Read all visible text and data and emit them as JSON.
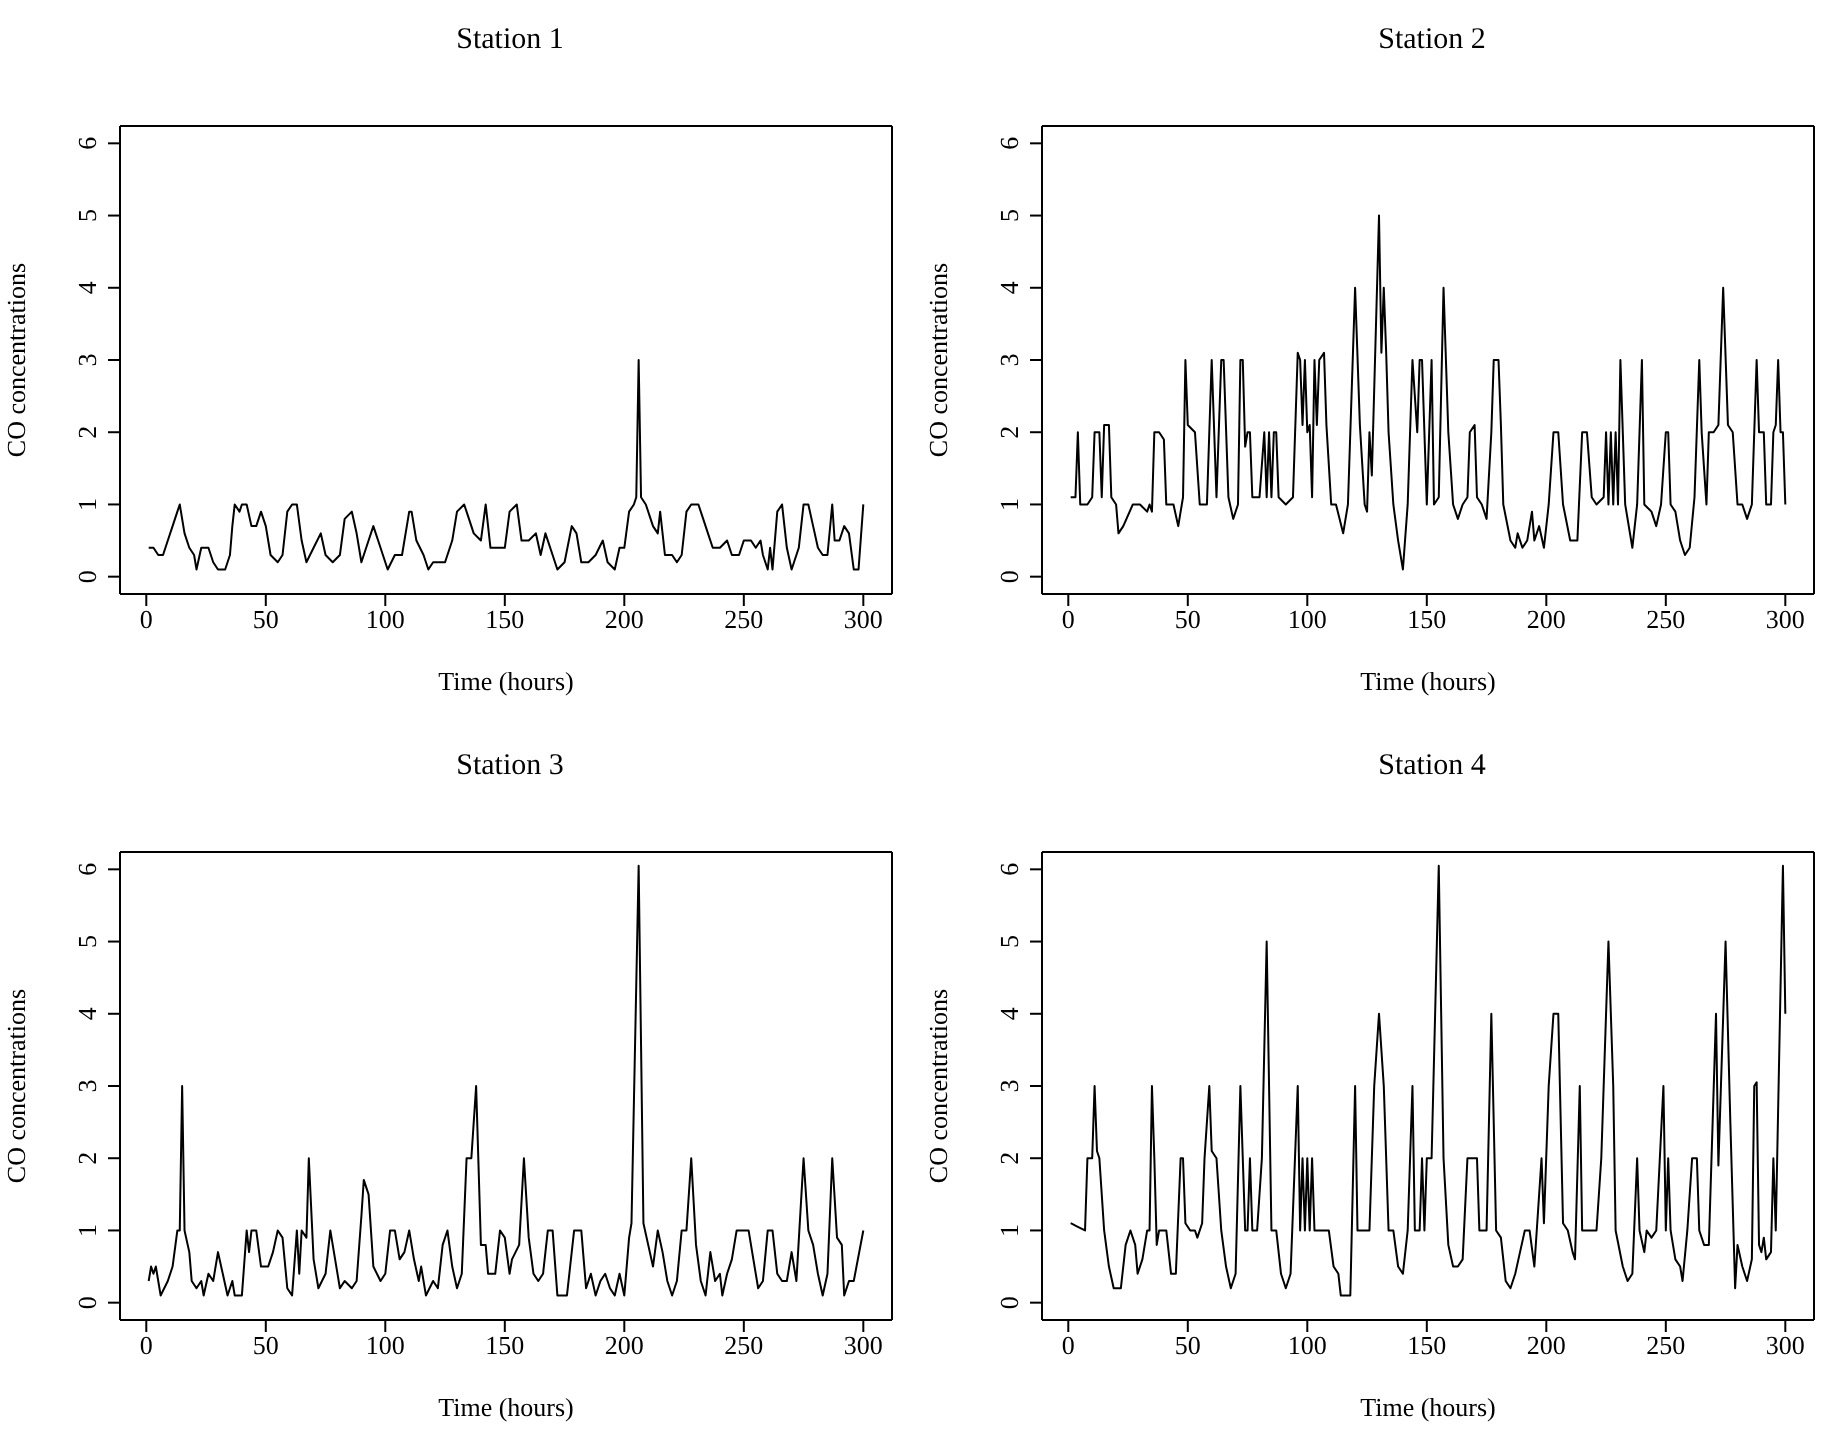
{
  "chart_data": [
    {
      "type": "line",
      "title": "Station 1",
      "xlabel": "Time (hours)",
      "ylabel": "CO concentrations",
      "color": "#000000",
      "xlim": [
        -11,
        312
      ],
      "ylim": [
        -0.24,
        6.24
      ],
      "xticks": [
        0,
        50,
        100,
        150,
        200,
        250,
        300
      ],
      "yticks": [
        0,
        1,
        2,
        3,
        4,
        5,
        6
      ],
      "x": [
        1,
        3,
        5,
        7,
        9,
        11,
        13,
        14,
        16,
        18,
        20,
        21,
        23,
        26,
        28,
        30,
        33,
        35,
        36,
        37,
        39,
        40,
        42,
        44,
        46,
        48,
        50,
        52,
        55,
        57,
        59,
        61,
        63,
        65,
        67,
        70,
        73,
        75,
        78,
        81,
        83,
        86,
        88,
        90,
        93,
        95,
        98,
        101,
        104,
        107,
        110,
        111,
        113,
        116,
        118,
        120,
        125,
        128,
        130,
        133,
        135,
        137,
        140,
        142,
        144,
        147,
        150,
        152,
        155,
        157,
        160,
        163,
        165,
        167,
        170,
        172,
        175,
        178,
        180,
        182,
        185,
        188,
        191,
        193,
        196,
        198,
        200,
        202,
        204,
        205,
        206,
        207,
        209,
        212,
        214,
        215,
        217,
        220,
        222,
        224,
        226,
        228,
        231,
        233,
        235,
        237,
        240,
        243,
        245,
        248,
        250,
        253,
        255,
        257,
        258,
        260,
        261,
        262,
        264,
        266,
        268,
        270,
        273,
        275,
        277,
        279,
        281,
        283,
        285,
        287,
        288,
        290,
        292,
        294,
        296,
        298,
        300
      ],
      "values": [
        0.4,
        0.4,
        0.3,
        0.3,
        0.5,
        0.7,
        0.9,
        1.0,
        0.6,
        0.4,
        0.3,
        0.1,
        0.4,
        0.4,
        0.2,
        0.1,
        0.1,
        0.3,
        0.7,
        1.0,
        0.9,
        1.0,
        1.0,
        0.7,
        0.7,
        0.9,
        0.7,
        0.3,
        0.2,
        0.3,
        0.9,
        1.0,
        1.0,
        0.5,
        0.2,
        0.4,
        0.6,
        0.3,
        0.2,
        0.3,
        0.8,
        0.9,
        0.6,
        0.2,
        0.5,
        0.7,
        0.4,
        0.1,
        0.3,
        0.3,
        0.9,
        0.9,
        0.5,
        0.3,
        0.1,
        0.2,
        0.2,
        0.5,
        0.9,
        1.0,
        0.8,
        0.6,
        0.5,
        1.0,
        0.4,
        0.4,
        0.4,
        0.9,
        1.0,
        0.5,
        0.5,
        0.6,
        0.3,
        0.6,
        0.3,
        0.1,
        0.2,
        0.7,
        0.6,
        0.2,
        0.2,
        0.3,
        0.5,
        0.2,
        0.1,
        0.4,
        0.4,
        0.9,
        1.0,
        1.1,
        3.0,
        1.1,
        1.0,
        0.7,
        0.6,
        0.9,
        0.3,
        0.3,
        0.2,
        0.3,
        0.9,
        1.0,
        1.0,
        0.8,
        0.6,
        0.4,
        0.4,
        0.5,
        0.3,
        0.3,
        0.5,
        0.5,
        0.4,
        0.5,
        0.3,
        0.1,
        0.4,
        0.1,
        0.9,
        1.0,
        0.4,
        0.1,
        0.4,
        1.0,
        1.0,
        0.7,
        0.4,
        0.3,
        0.3,
        1.0,
        0.5,
        0.5,
        0.7,
        0.6,
        0.1,
        0.1,
        1.0
      ]
    },
    {
      "type": "line",
      "title": "Station 2",
      "xlabel": "Time (hours)",
      "ylabel": "CO concentrations",
      "color": "#000000",
      "xlim": [
        -11,
        312
      ],
      "ylim": [
        -0.24,
        6.24
      ],
      "xticks": [
        0,
        50,
        100,
        150,
        200,
        250,
        300
      ],
      "yticks": [
        0,
        1,
        2,
        3,
        4,
        5,
        6
      ],
      "x": [
        1,
        3,
        4,
        5,
        8,
        10,
        11,
        13,
        14,
        15,
        17,
        18,
        20,
        21,
        23,
        27,
        30,
        33,
        34,
        35,
        36,
        38,
        40,
        41,
        44,
        46,
        47,
        48,
        49,
        50,
        53,
        55,
        58,
        60,
        62,
        64,
        65,
        67,
        69,
        71,
        72,
        73,
        74,
        75,
        76,
        77,
        80,
        82,
        83,
        84,
        85,
        86,
        87,
        88,
        91,
        94,
        96,
        97,
        98,
        99,
        100,
        101,
        102,
        103,
        104,
        105,
        107,
        108,
        110,
        112,
        115,
        117,
        120,
        122,
        124,
        125,
        126,
        127,
        130,
        131,
        132,
        133,
        134,
        136,
        138,
        140,
        142,
        143,
        144,
        146,
        147,
        148,
        150,
        152,
        153,
        155,
        157,
        159,
        161,
        163,
        165,
        167,
        168,
        170,
        171,
        173,
        175,
        177,
        178,
        180,
        181,
        182,
        185,
        187,
        188,
        190,
        192,
        194,
        195,
        197,
        199,
        201,
        203,
        205,
        207,
        210,
        213,
        215,
        217,
        219,
        221,
        224,
        225,
        226,
        227,
        228,
        229,
        230,
        231,
        233,
        236,
        238,
        240,
        241,
        244,
        246,
        248,
        250,
        251,
        252,
        254,
        256,
        258,
        260,
        262,
        264,
        265,
        267,
        268,
        270,
        272,
        274,
        276,
        278,
        280,
        282,
        284,
        286,
        288,
        289,
        291,
        292,
        294,
        295,
        296,
        297,
        298,
        299,
        300
      ],
      "values": [
        1.1,
        1.1,
        2.0,
        1.0,
        1.0,
        1.1,
        2.0,
        2.0,
        1.1,
        2.1,
        2.1,
        1.1,
        1.0,
        0.6,
        0.7,
        1.0,
        1.0,
        0.9,
        1.0,
        0.9,
        2.0,
        2.0,
        1.9,
        1.0,
        1.0,
        0.7,
        0.9,
        1.1,
        3.0,
        2.1,
        2.0,
        1.0,
        1.0,
        3.0,
        1.1,
        3.0,
        3.0,
        1.1,
        0.8,
        1.0,
        3.0,
        3.0,
        1.8,
        2.0,
        2.0,
        1.1,
        1.1,
        2.0,
        1.1,
        2.0,
        1.1,
        2.0,
        2.0,
        1.1,
        1.0,
        1.1,
        3.1,
        3.0,
        2.1,
        3.0,
        2.0,
        2.1,
        1.1,
        3.0,
        2.1,
        3.0,
        3.1,
        2.1,
        1.0,
        1.0,
        0.6,
        1.0,
        4.0,
        2.1,
        1.0,
        0.9,
        2.0,
        1.4,
        5.0,
        3.1,
        4.0,
        3.1,
        2.0,
        1.0,
        0.5,
        0.1,
        1.0,
        2.0,
        3.0,
        2.0,
        3.0,
        3.0,
        1.0,
        3.0,
        1.0,
        1.1,
        4.0,
        2.0,
        1.0,
        0.8,
        1.0,
        1.1,
        2.0,
        2.1,
        1.1,
        1.0,
        0.8,
        2.0,
        3.0,
        3.0,
        2.1,
        1.0,
        0.5,
        0.4,
        0.6,
        0.4,
        0.5,
        0.9,
        0.5,
        0.7,
        0.4,
        1.0,
        2.0,
        2.0,
        1.0,
        0.5,
        0.5,
        2.0,
        2.0,
        1.1,
        1.0,
        1.1,
        2.0,
        1.0,
        2.0,
        1.0,
        2.0,
        1.0,
        3.0,
        1.0,
        0.4,
        1.0,
        3.0,
        1.0,
        0.9,
        0.7,
        1.0,
        2.0,
        2.0,
        1.0,
        0.9,
        0.5,
        0.3,
        0.4,
        1.1,
        3.0,
        2.0,
        1.0,
        2.0,
        2.0,
        2.1,
        4.0,
        2.1,
        2.0,
        1.0,
        1.0,
        0.8,
        1.0,
        3.0,
        2.0,
        2.0,
        1.0,
        1.0,
        2.0,
        2.1,
        3.0,
        2.0,
        2.0,
        1.0
      ]
    },
    {
      "type": "line",
      "title": "Station 3",
      "xlabel": "Time (hours)",
      "ylabel": "CO concentrations",
      "color": "#000000",
      "xlim": [
        -11,
        312
      ],
      "ylim": [
        -0.24,
        6.24
      ],
      "xticks": [
        0,
        50,
        100,
        150,
        200,
        250,
        300
      ],
      "yticks": [
        0,
        1,
        2,
        3,
        4,
        5,
        6
      ],
      "x": [
        1,
        2,
        3,
        4,
        5,
        6,
        9,
        11,
        13,
        14,
        15,
        16,
        18,
        19,
        21,
        23,
        24,
        26,
        28,
        30,
        32,
        34,
        36,
        37,
        40,
        42,
        43,
        44,
        46,
        48,
        51,
        53,
        55,
        57,
        59,
        61,
        63,
        64,
        65,
        67,
        68,
        70,
        72,
        75,
        77,
        79,
        81,
        83,
        86,
        88,
        90,
        91,
        93,
        95,
        98,
        100,
        102,
        104,
        106,
        108,
        110,
        112,
        114,
        115,
        117,
        120,
        122,
        124,
        126,
        128,
        130,
        132,
        134,
        136,
        138,
        140,
        142,
        143,
        146,
        148,
        150,
        152,
        153,
        156,
        158,
        160,
        162,
        164,
        166,
        168,
        170,
        172,
        176,
        179,
        182,
        184,
        186,
        188,
        190,
        192,
        194,
        196,
        198,
        200,
        202,
        203,
        206,
        208,
        210,
        212,
        214,
        216,
        218,
        220,
        222,
        224,
        226,
        228,
        230,
        232,
        234,
        236,
        238,
        240,
        241,
        243,
        245,
        247,
        250,
        252,
        254,
        256,
        258,
        260,
        262,
        264,
        266,
        268,
        270,
        272,
        275,
        277,
        279,
        281,
        283,
        285,
        287,
        289,
        291,
        292,
        294,
        296,
        300
      ],
      "values": [
        0.3,
        0.5,
        0.4,
        0.5,
        0.3,
        0.1,
        0.3,
        0.5,
        1.0,
        1.0,
        3.0,
        1.0,
        0.7,
        0.3,
        0.2,
        0.3,
        0.1,
        0.4,
        0.3,
        0.7,
        0.4,
        0.1,
        0.3,
        0.1,
        0.1,
        1.0,
        0.7,
        1.0,
        1.0,
        0.5,
        0.5,
        0.7,
        1.0,
        0.9,
        0.2,
        0.1,
        1.0,
        0.4,
        1.0,
        0.9,
        2.0,
        0.6,
        0.2,
        0.4,
        1.0,
        0.6,
        0.2,
        0.3,
        0.2,
        0.3,
        1.2,
        1.7,
        1.5,
        0.5,
        0.3,
        0.4,
        1.0,
        1.0,
        0.6,
        0.7,
        1.0,
        0.6,
        0.3,
        0.5,
        0.1,
        0.3,
        0.2,
        0.8,
        1.0,
        0.5,
        0.2,
        0.4,
        2.0,
        2.0,
        3.0,
        0.8,
        0.8,
        0.4,
        0.4,
        1.0,
        0.9,
        0.4,
        0.6,
        0.8,
        2.0,
        0.9,
        0.4,
        0.3,
        0.4,
        1.0,
        1.0,
        0.1,
        0.1,
        1.0,
        1.0,
        0.2,
        0.4,
        0.1,
        0.3,
        0.4,
        0.2,
        0.1,
        0.4,
        0.1,
        0.9,
        1.1,
        6.05,
        1.1,
        0.8,
        0.5,
        1.0,
        0.7,
        0.3,
        0.1,
        0.3,
        1.0,
        1.0,
        2.0,
        0.8,
        0.3,
        0.1,
        0.7,
        0.3,
        0.4,
        0.1,
        0.4,
        0.6,
        1.0,
        1.0,
        1.0,
        0.6,
        0.2,
        0.3,
        1.0,
        1.0,
        0.4,
        0.3,
        0.3,
        0.7,
        0.3,
        2.0,
        1.0,
        0.8,
        0.4,
        0.1,
        0.4,
        2.0,
        0.9,
        0.8,
        0.1,
        0.3,
        0.3,
        1.0
      ]
    },
    {
      "type": "line",
      "title": "Station 4",
      "xlabel": "Time (hours)",
      "ylabel": "CO concentrations",
      "color": "#000000",
      "xlim": [
        -11,
        312
      ],
      "ylim": [
        -0.24,
        6.24
      ],
      "xticks": [
        0,
        50,
        100,
        150,
        200,
        250,
        300
      ],
      "yticks": [
        0,
        1,
        2,
        3,
        4,
        5,
        6
      ],
      "x": [
        1,
        4,
        7,
        8,
        10,
        11,
        12,
        13,
        15,
        17,
        19,
        22,
        24,
        26,
        28,
        29,
        31,
        33,
        34,
        35,
        36,
        37,
        38,
        41,
        43,
        45,
        47,
        48,
        49,
        51,
        53,
        54,
        56,
        57,
        59,
        60,
        62,
        64,
        66,
        68,
        70,
        72,
        74,
        75,
        76,
        77,
        79,
        81,
        83,
        85,
        87,
        89,
        91,
        93,
        96,
        97,
        98,
        99,
        100,
        101,
        102,
        103,
        105,
        107,
        109,
        111,
        113,
        114,
        118,
        120,
        121,
        123,
        126,
        128,
        130,
        132,
        134,
        136,
        138,
        140,
        142,
        144,
        145,
        147,
        148,
        149,
        150,
        152,
        155,
        157,
        159,
        161,
        163,
        165,
        167,
        169,
        171,
        172,
        175,
        177,
        179,
        181,
        183,
        185,
        187,
        189,
        191,
        193,
        195,
        196,
        198,
        199,
        201,
        203,
        205,
        207,
        209,
        211,
        212,
        214,
        215,
        217,
        219,
        221,
        223,
        226,
        228,
        229,
        232,
        234,
        236,
        238,
        239,
        241,
        242,
        244,
        246,
        249,
        250,
        251,
        252,
        254,
        256,
        257,
        259,
        261,
        263,
        264,
        266,
        268,
        271,
        272,
        275,
        277,
        279,
        280,
        282,
        284,
        286,
        287,
        288,
        289,
        290,
        291,
        292,
        294,
        295,
        296,
        299,
        300
      ],
      "values": [
        1.1,
        1.05,
        1.0,
        2.0,
        2.0,
        3.0,
        2.1,
        2.0,
        1.0,
        0.5,
        0.2,
        0.2,
        0.8,
        1.0,
        0.8,
        0.4,
        0.6,
        1.0,
        1.0,
        3.0,
        2.0,
        0.8,
        1.0,
        1.0,
        0.4,
        0.4,
        2.0,
        2.0,
        1.1,
        1.0,
        1.0,
        0.9,
        1.1,
        2.0,
        3.0,
        2.1,
        2.0,
        1.0,
        0.5,
        0.2,
        0.4,
        3.0,
        1.0,
        1.0,
        2.0,
        1.0,
        1.0,
        2.0,
        5.0,
        1.0,
        1.0,
        0.4,
        0.2,
        0.4,
        3.0,
        1.0,
        2.0,
        1.0,
        2.0,
        1.0,
        2.0,
        1.0,
        1.0,
        1.0,
        1.0,
        0.5,
        0.4,
        0.1,
        0.1,
        3.0,
        1.0,
        1.0,
        1.0,
        3.0,
        4.0,
        3.0,
        1.0,
        1.0,
        0.5,
        0.4,
        1.0,
        3.0,
        1.0,
        1.0,
        2.0,
        1.0,
        2.0,
        2.0,
        6.05,
        2.0,
        0.8,
        0.5,
        0.5,
        0.6,
        2.0,
        2.0,
        2.0,
        1.0,
        1.0,
        4.0,
        1.0,
        0.9,
        0.3,
        0.2,
        0.4,
        0.7,
        1.0,
        1.0,
        0.5,
        1.0,
        2.0,
        1.1,
        3.0,
        4.0,
        4.0,
        1.1,
        1.0,
        0.7,
        0.6,
        3.0,
        1.0,
        1.0,
        1.0,
        1.0,
        2.0,
        5.0,
        3.0,
        1.0,
        0.5,
        0.3,
        0.4,
        2.0,
        1.0,
        0.7,
        1.0,
        0.9,
        1.0,
        3.0,
        1.0,
        2.0,
        1.0,
        0.6,
        0.5,
        0.3,
        1.0,
        2.0,
        2.0,
        1.0,
        0.8,
        0.8,
        4.0,
        1.9,
        5.0,
        2.5,
        0.2,
        0.8,
        0.5,
        0.3,
        0.6,
        3.0,
        3.05,
        0.8,
        0.7,
        0.9,
        0.6,
        0.7,
        2.0,
        1.0,
        6.05,
        4.0
      ]
    }
  ]
}
